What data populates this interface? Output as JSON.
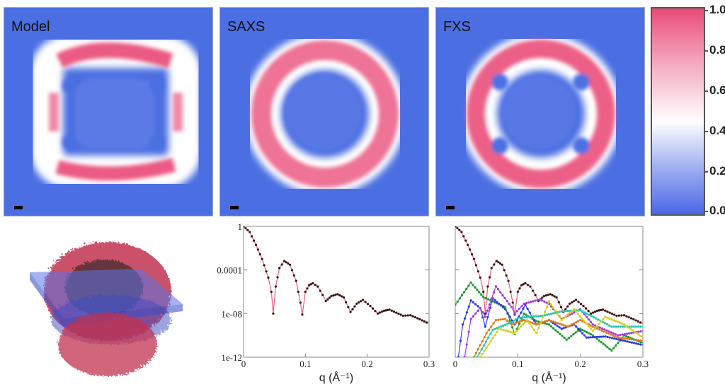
{
  "panels": [
    {
      "label": "Model",
      "shape": "square-ring"
    },
    {
      "label": "SAXS",
      "shape": "ring"
    },
    {
      "label": "FXS",
      "shape": "ring-with-lobes"
    }
  ],
  "colors": {
    "background_blue": "#4b6fe2",
    "high_pink": "#e84a78",
    "mid_white": "#ffffff"
  },
  "colorbar": {
    "ticks": [
      "1.0",
      "0.8",
      "0.6",
      "0.4",
      "0.2",
      "0.0"
    ],
    "range": [
      0,
      1
    ]
  },
  "chart_data": [
    {
      "type": "line",
      "title": "",
      "xlabel": "q (Å⁻¹)",
      "ylabel": "",
      "xlim": [
        0,
        0.3
      ],
      "ylim": [
        1e-12,
        1
      ],
      "yscale": "log",
      "xticks": [
        "0",
        "0.1",
        "0.2",
        "0.3"
      ],
      "yticks": [
        "1",
        "0.0001",
        "1e-08",
        "1e-12"
      ],
      "series": [
        {
          "color": "#d92b3a",
          "x": [
            0,
            0.01,
            0.02,
            0.03,
            0.04,
            0.045,
            0.048,
            0.052,
            0.058,
            0.066,
            0.075,
            0.085,
            0.092,
            0.095,
            0.1,
            0.106,
            0.112,
            0.12,
            0.128,
            0.133,
            0.142,
            0.152,
            0.162,
            0.173,
            0.183,
            0.193,
            0.205,
            0.217,
            0.227,
            0.236,
            0.247,
            0.258,
            0.27,
            0.285,
            0.3
          ],
          "y": [
            1,
            0.3,
            0.02,
            0.001,
            2e-05,
            1e-06,
            1e-08,
            3e-06,
            0.00015,
            0.00066,
            0.0003,
            1e-05,
            1e-07,
            8e-09,
            1e-06,
            4e-06,
            6e-06,
            3e-06,
            5e-07,
            1.4e-07,
            4e-07,
            6e-07,
            3e-07,
            1.4e-08,
            8e-08,
            1.8e-07,
            5e-08,
            1e-08,
            1.8e-08,
            2.3e-08,
            1.2e-08,
            6.3e-09,
            7e-09,
            3e-09,
            1.2e-09
          ]
        }
      ]
    },
    {
      "type": "line",
      "title": "",
      "xlabel": "q (Å⁻¹)",
      "ylabel": "",
      "xlim": [
        0,
        0.3
      ],
      "ylim": [
        1e-12,
        1
      ],
      "yscale": "log",
      "xticks": [
        "0",
        "0.1",
        "0.2",
        "0.3"
      ],
      "series": [
        {
          "color": "#d92b3a",
          "x": [
            0,
            0.01,
            0.02,
            0.03,
            0.04,
            0.045,
            0.048,
            0.052,
            0.058,
            0.066,
            0.075,
            0.085,
            0.092,
            0.095,
            0.1,
            0.106,
            0.112,
            0.12,
            0.128,
            0.133,
            0.142,
            0.152,
            0.162,
            0.173,
            0.183,
            0.193,
            0.205,
            0.217,
            0.227,
            0.236,
            0.247,
            0.258,
            0.27,
            0.285,
            0.3
          ],
          "y": [
            1,
            0.3,
            0.02,
            0.001,
            2e-05,
            1e-06,
            1e-08,
            3e-06,
            0.00015,
            0.00066,
            0.0003,
            1e-05,
            1e-07,
            8e-09,
            1e-06,
            4e-06,
            6e-06,
            3e-06,
            5e-07,
            1.4e-07,
            4e-07,
            6e-07,
            3e-07,
            1.4e-08,
            8e-08,
            1.8e-07,
            5e-08,
            1e-08,
            1.8e-08,
            2.3e-08,
            1.2e-08,
            6.3e-09,
            7e-09,
            3e-09,
            1.2e-09
          ]
        },
        {
          "color": "#1f9a2e",
          "x": [
            0,
            0.025,
            0.045,
            0.06,
            0.08,
            0.095,
            0.11,
            0.13,
            0.15,
            0.178,
            0.2,
            0.22,
            0.25,
            0.27,
            0.3
          ],
          "y": [
            6.3e-08,
            7e-06,
            3.2e-07,
            1.3e-07,
            4e-08,
            1.3e-10,
            1e-08,
            2e-09,
            1e-09,
            4e-11,
            4e-10,
            1e-10,
            4e-12,
            1e-10,
            2e-11
          ]
        },
        {
          "color": "#2a3fe0",
          "x": [
            0.005,
            0.012,
            0.025,
            0.04,
            0.048,
            0.06,
            0.08,
            0.095,
            0.112,
            0.13,
            0.15,
            0.17,
            0.19,
            0.21,
            0.24,
            0.3
          ],
          "y": [
            1e-12,
            1e-09,
            1.6e-07,
            3.2e-08,
            6.3e-10,
            2.5e-07,
            2.5e-08,
            1e-09,
            6.3e-08,
            1e-09,
            2.5e-09,
            4e-10,
            1e-09,
            6.3e-11,
            7.9e-11,
            1.3e-11
          ]
        },
        {
          "color": "#a43be0",
          "x": [
            0.015,
            0.025,
            0.04,
            0.048,
            0.065,
            0.09,
            0.095,
            0.11,
            0.135,
            0.15,
            0.17,
            0.2,
            0.22,
            0.26,
            0.3
          ],
          "y": [
            1e-12,
            3.2e-09,
            3.2e-08,
            5e-09,
            3.2e-06,
            4e-08,
            1e-08,
            7.9e-08,
            2e-07,
            7.9e-08,
            3.2e-09,
            2.5e-08,
            1e-09,
            1e-10,
            2.5e-10
          ]
        },
        {
          "color": "#e07b1a",
          "x": [
            0.03,
            0.05,
            0.065,
            0.08,
            0.09,
            0.11,
            0.13,
            0.15,
            0.18,
            0.2,
            0.22,
            0.26,
            0.3
          ],
          "y": [
            1e-12,
            1.6e-10,
            2.5e-09,
            3.2e-09,
            1e-09,
            2.5e-09,
            1e-09,
            2.5e-09,
            6.3e-10,
            2.5e-09,
            6.3e-10,
            6.3e-11,
            3.2e-11
          ]
        },
        {
          "color": "#22c9b5",
          "x": [
            0.035,
            0.06,
            0.09,
            0.1,
            0.14,
            0.17,
            0.2,
            0.25,
            0.3
          ],
          "y": [
            1e-12,
            3.2e-10,
            1.6e-09,
            4e-09,
            6.3e-09,
            1.6e-08,
            2e-08,
            6.3e-10,
            6.3e-10
          ]
        },
        {
          "color": "#d6d11e",
          "x": [
            0.04,
            0.07,
            0.095,
            0.115,
            0.13,
            0.15,
            0.17,
            0.19,
            0.22,
            0.24,
            0.27,
            0.3
          ],
          "y": [
            1e-12,
            4e-10,
            1.6e-10,
            2.5e-09,
            1.6e-10,
            1.3e-07,
            2.5e-09,
            2.5e-08,
            2.5e-10,
            5e-09,
            1e-09,
            6.3e-11
          ]
        }
      ]
    }
  ]
}
